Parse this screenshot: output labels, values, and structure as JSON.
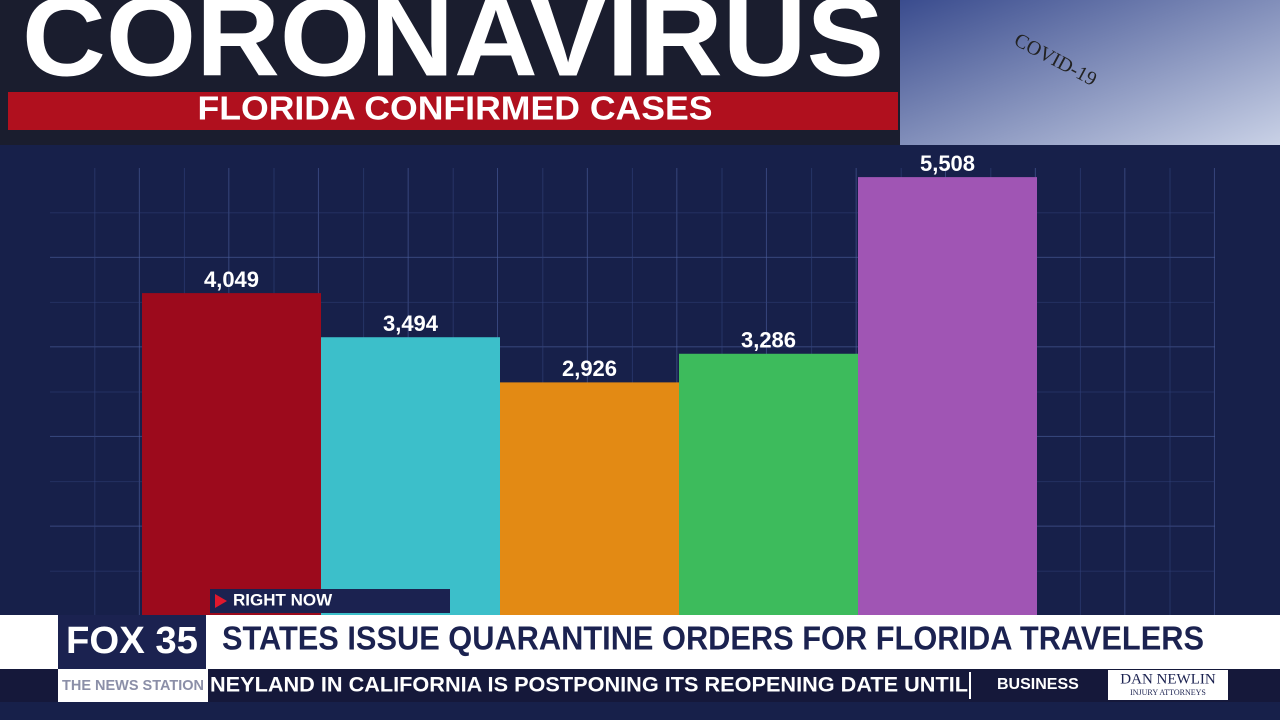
{
  "chart_data": {
    "type": "bar",
    "title": "CORONAVIRUS",
    "subtitle": "FLORIDA CONFIRMED CASES",
    "categories": [
      null,
      null,
      null,
      null,
      null
    ],
    "values": [
      4049,
      3494,
      2926,
      3286,
      5508
    ],
    "value_labels": [
      "4,049",
      "3,494",
      "2,926",
      "3,286",
      "5,508"
    ],
    "colors": [
      "#9c0a1c",
      "#3cbfca",
      "#e38a14",
      "#3dbb5c",
      "#a055b4"
    ],
    "ylim": [
      0,
      6000
    ]
  },
  "broadcast": {
    "tag": "RIGHT NOW",
    "logo": "FOX 35",
    "station": "THE NEWS STATION",
    "headline": "STATES ISSUE QUARANTINE ORDERS FOR FLORIDA TRAVELERS",
    "ticker": "NEYLAND IN CALIFORNIA IS POSTPONING ITS REOPENING DATE UNTIL",
    "ticker_section": "BUSINESS",
    "sponsor": "DAN NEWLIN",
    "sponsor_tagline": "INJURY ATTORNEYS",
    "image_label": "COVID-19"
  }
}
